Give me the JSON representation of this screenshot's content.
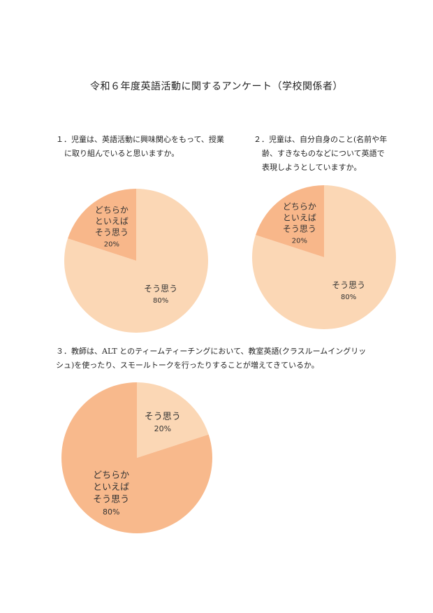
{
  "page": {
    "title": "令和６年度英語活動に関するアンケート（学校関係者）"
  },
  "questions": [
    {
      "line1": "１．児童は、英語活動に興味関心をもって、授業",
      "line2": "に取り組んでいると思いますか。"
    },
    {
      "line1": "２．児童は、自分自身のこと(名前や年",
      "line2": "齢、すきなものなどについて英語で",
      "line3": "表現しようとしていますか。"
    },
    {
      "line1": "３．教師は、ALT とのティームティーチングにおいて、教室英語(クラスルームイングリッ",
      "line2": "シュ)を使ったり、スモールトークを行ったりすることが増えてきているか。"
    }
  ],
  "chart_data": [
    {
      "type": "pie",
      "slices": [
        {
          "label": [
            "そう思う"
          ],
          "value": 80,
          "pct_label": "80%",
          "color": "#fbd7b5"
        },
        {
          "label": [
            "どちらか",
            "といえば",
            "そう思う"
          ],
          "value": 20,
          "pct_label": "20%",
          "color": "#f8b78a"
        }
      ]
    },
    {
      "type": "pie",
      "slices": [
        {
          "label": [
            "そう思う"
          ],
          "value": 80,
          "pct_label": "80%",
          "color": "#fbd7b5"
        },
        {
          "label": [
            "どちらか",
            "といえば",
            "そう思う"
          ],
          "value": 20,
          "pct_label": "20%",
          "color": "#f8b78a"
        }
      ]
    },
    {
      "type": "pie",
      "slices": [
        {
          "label": [
            "そう思う"
          ],
          "value": 20,
          "pct_label": "20%",
          "color": "#fbd7b5"
        },
        {
          "label": [
            "どちらか",
            "といえば",
            "そう思う"
          ],
          "value": 80,
          "pct_label": "80%",
          "color": "#f8b98c"
        }
      ]
    }
  ]
}
